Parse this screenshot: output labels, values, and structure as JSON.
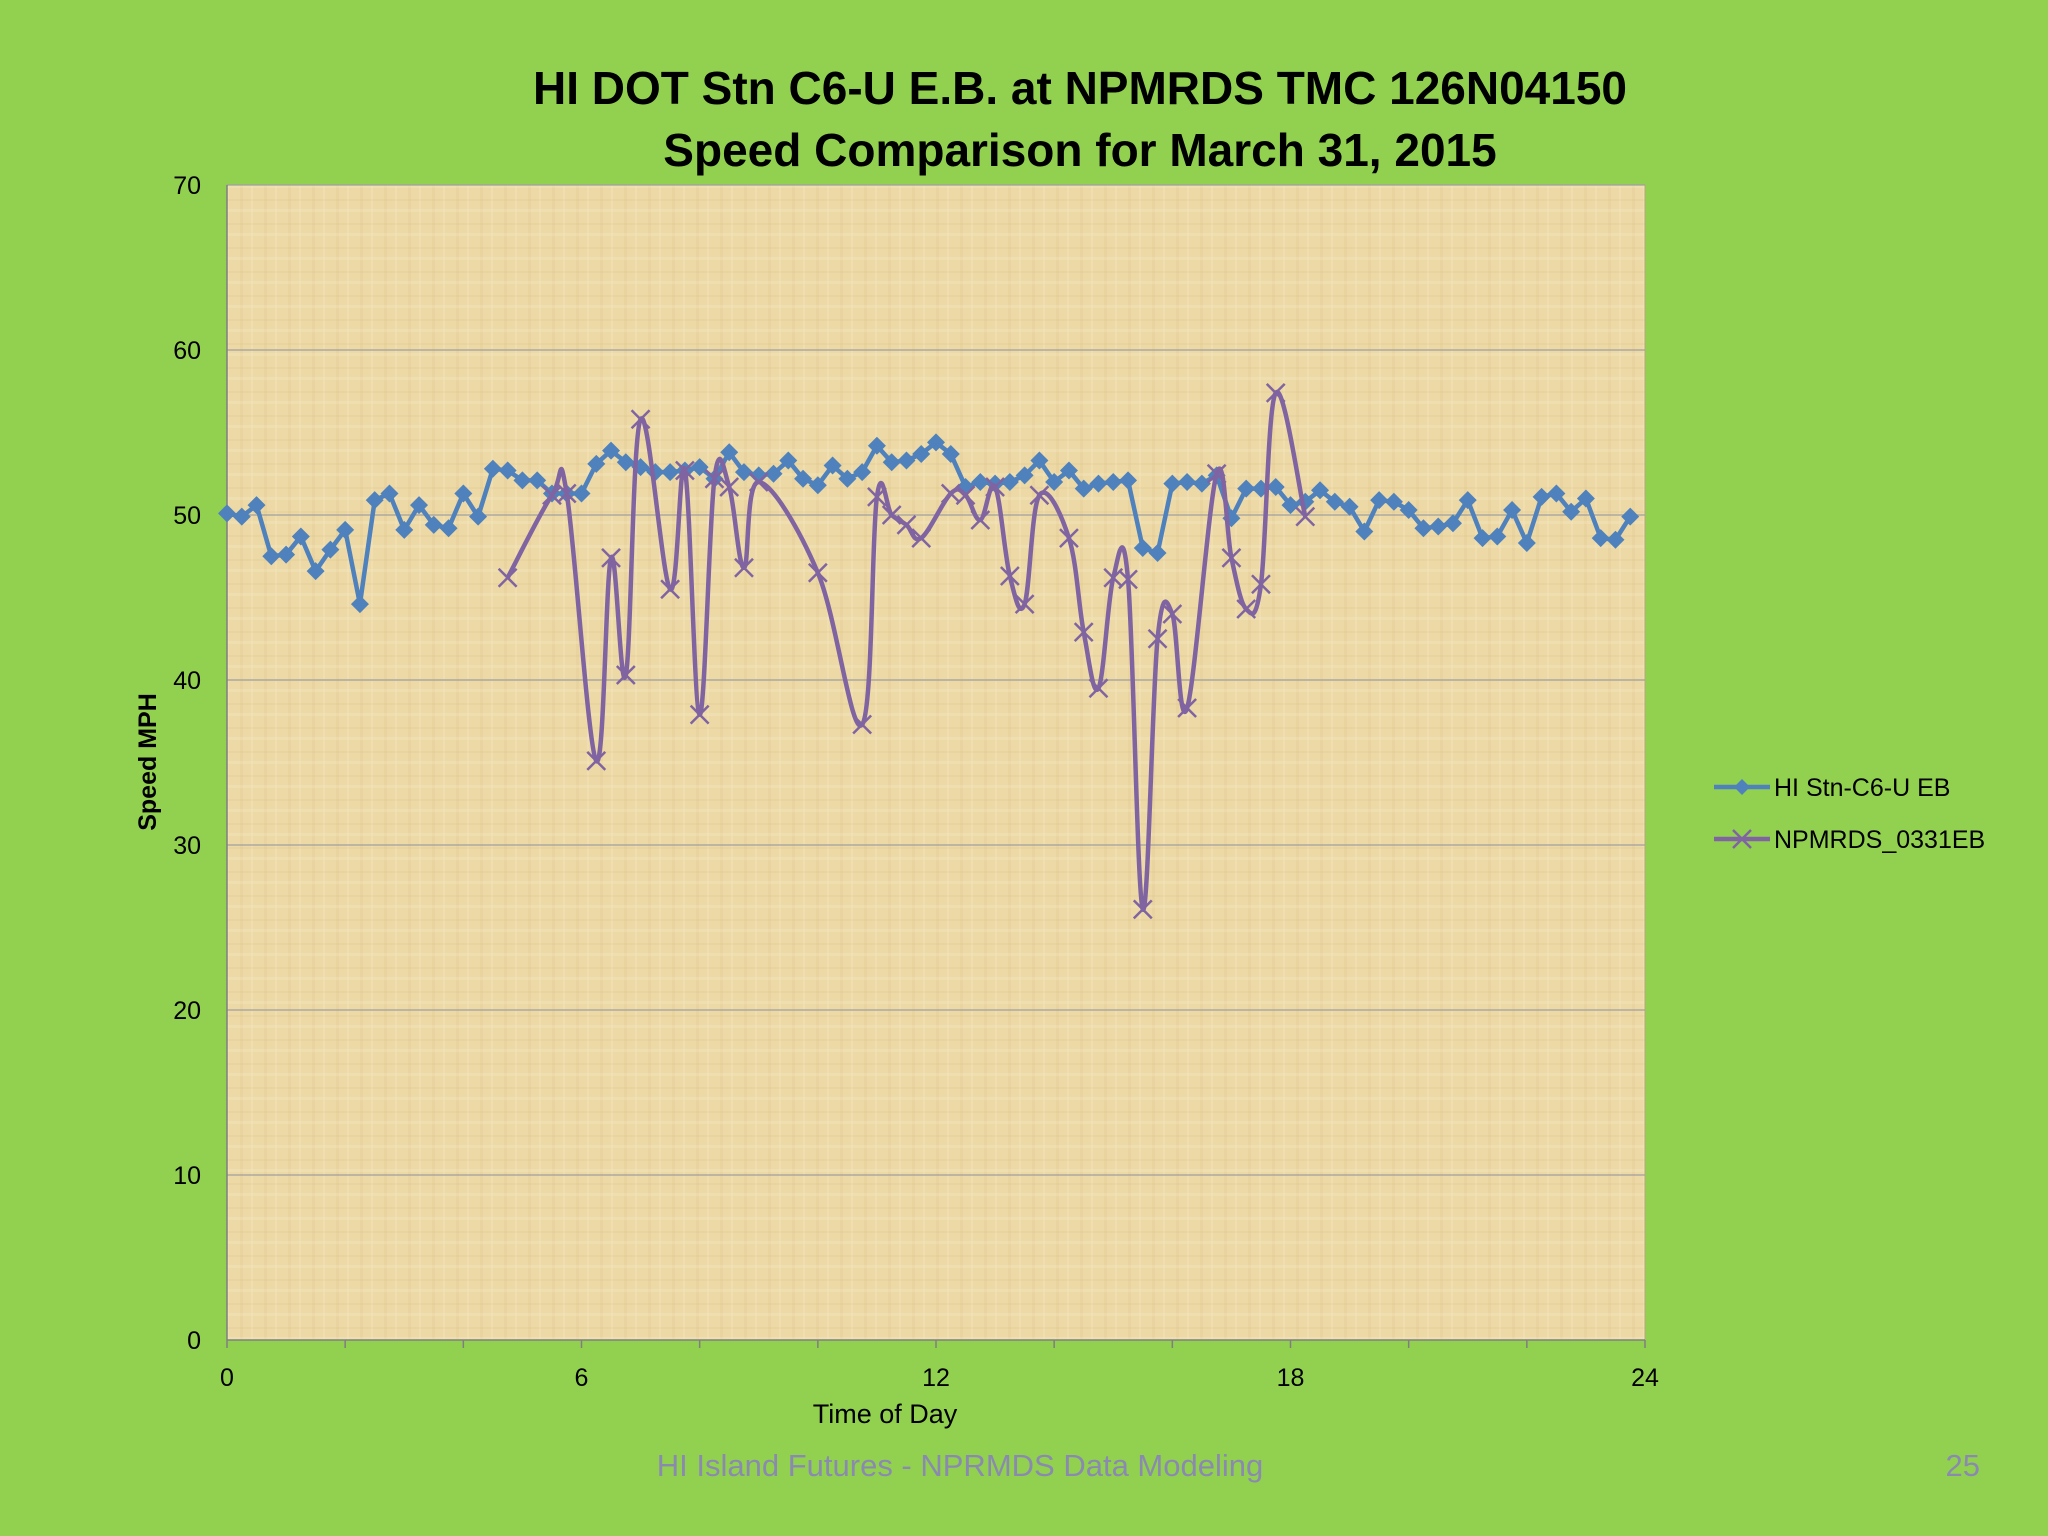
{
  "slide": {
    "footer_text": "HI Island Futures - NPRMDS Data Modeling",
    "page_number": "25"
  },
  "colors": {
    "background": "#92d050",
    "plot_area": "#ecd9a6",
    "series1": "#4f81bd",
    "series2": "#8064a2",
    "gridline": "#a0a0a0"
  },
  "chart_data": {
    "type": "line",
    "title": "HI DOT Stn C6-U E.B. at NPMRDS TMC 126N04150",
    "subtitle": "Speed Comparison for March 31, 2015",
    "xlabel": "Time of Day",
    "ylabel": "Speed MPH",
    "xlim": [
      0,
      24
    ],
    "ylim": [
      0,
      70
    ],
    "xticks": [
      0,
      6,
      12,
      18,
      24
    ],
    "yticks": [
      0,
      10,
      20,
      30,
      40,
      50,
      60,
      70
    ],
    "grid": "horizontal",
    "legend_position": "right",
    "series": [
      {
        "name": "HI Stn-C6-U EB",
        "marker": "diamond",
        "color": "#4f81bd",
        "x": [
          0,
          0.25,
          0.5,
          0.75,
          1,
          1.25,
          1.5,
          1.75,
          2,
          2.25,
          2.5,
          2.75,
          3,
          3.25,
          3.5,
          3.75,
          4,
          4.25,
          4.5,
          4.75,
          5,
          5.25,
          5.5,
          5.75,
          6,
          6.25,
          6.5,
          6.75,
          7,
          7.25,
          7.5,
          7.75,
          8,
          8.25,
          8.5,
          8.75,
          9,
          9.25,
          9.5,
          9.75,
          10,
          10.25,
          10.5,
          10.75,
          11,
          11.25,
          11.5,
          11.75,
          12,
          12.25,
          12.5,
          12.75,
          13,
          13.25,
          13.5,
          13.75,
          14,
          14.25,
          14.5,
          14.75,
          15,
          15.25,
          15.5,
          15.75,
          16,
          16.25,
          16.5,
          16.75,
          17,
          17.25,
          17.5,
          17.75,
          18,
          18.25,
          18.5,
          18.75,
          19,
          19.25,
          19.5,
          19.75,
          20,
          20.25,
          20.5,
          20.75,
          21,
          21.25,
          21.5,
          21.75,
          22,
          22.25,
          22.5,
          22.75,
          23,
          23.25,
          23.5,
          23.75
        ],
        "values": [
          50.1,
          49.9,
          50.6,
          47.5,
          47.6,
          48.7,
          46.6,
          47.9,
          49.1,
          44.6,
          50.9,
          51.3,
          49.1,
          50.6,
          49.4,
          49.2,
          51.3,
          49.9,
          52.8,
          52.7,
          52.1,
          52.1,
          51.3,
          51.3,
          51.3,
          53.1,
          53.9,
          53.2,
          52.9,
          52.6,
          52.6,
          52.7,
          52.9,
          52.2,
          53.8,
          52.6,
          52.4,
          52.5,
          53.3,
          52.2,
          51.8,
          53.0,
          52.2,
          52.6,
          54.2,
          53.2,
          53.3,
          53.7,
          54.4,
          53.7,
          51.7,
          52.0,
          51.9,
          52.0,
          52.4,
          53.3,
          52.0,
          52.7,
          51.6,
          51.9,
          52.0,
          52.1,
          48.0,
          47.7,
          51.9,
          52.0,
          51.9,
          52.4,
          49.8,
          51.6,
          51.6,
          51.7,
          50.6,
          50.8,
          51.5,
          50.8,
          50.5,
          49.0,
          50.9,
          50.8,
          50.3,
          49.2,
          49.3,
          49.5,
          50.9,
          48.6,
          48.7,
          50.3,
          48.3,
          51.1,
          51.3,
          50.2,
          51.0,
          48.6,
          48.5,
          49.9
        ]
      },
      {
        "name": "NPMRDS_0331EB",
        "marker": "x",
        "color": "#8064a2",
        "x": [
          4.75,
          5.5,
          5.75,
          6.25,
          6.5,
          6.75,
          7,
          7.5,
          7.75,
          8,
          8.25,
          8.5,
          8.75,
          9,
          10,
          10.75,
          11,
          11.25,
          11.5,
          11.75,
          12.25,
          12.5,
          12.75,
          13,
          13.25,
          13.5,
          13.75,
          14.25,
          14.5,
          14.75,
          15,
          15.25,
          15.5,
          15.75,
          16,
          16.25,
          16.75,
          17,
          17.25,
          17.5,
          17.75,
          18.25
        ],
        "values": [
          46.2,
          51.2,
          51.3,
          35.1,
          47.4,
          40.3,
          55.8,
          45.5,
          52.7,
          37.9,
          52.2,
          51.7,
          46.8,
          52.0,
          46.5,
          37.3,
          51.1,
          50.0,
          49.4,
          48.6,
          51.3,
          51.2,
          49.7,
          51.7,
          46.3,
          44.6,
          51.2,
          48.6,
          42.9,
          39.5,
          46.2,
          46.1,
          26.1,
          42.5,
          44.0,
          38.3,
          52.5,
          47.4,
          44.3,
          45.8,
          57.4,
          49.9
        ]
      }
    ]
  }
}
